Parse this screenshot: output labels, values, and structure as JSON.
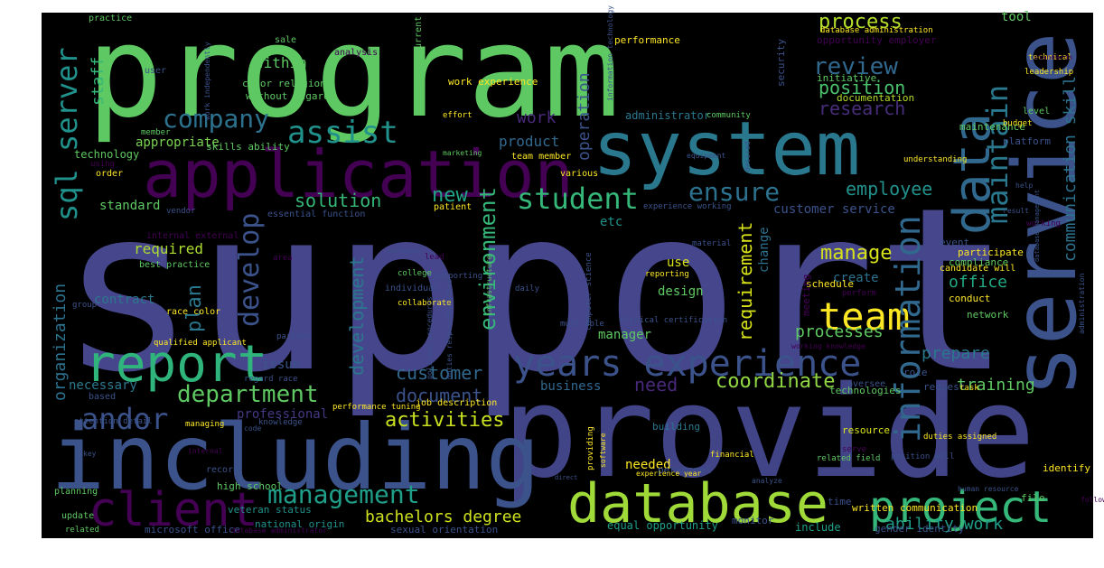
{
  "colors": {
    "background": "#000000",
    "page": "#ffffff"
  },
  "words": [
    {
      "text": "program",
      "color": "#5ec962"
    },
    {
      "text": "support",
      "color": "#46468c"
    },
    {
      "text": "provide",
      "color": "#414487"
    },
    {
      "text": "system",
      "color": "#2a788e"
    },
    {
      "text": "service",
      "color": "#3b528b"
    },
    {
      "text": "including",
      "color": "#3b528b"
    },
    {
      "text": "application",
      "color": "#440154"
    },
    {
      "text": "database",
      "color": "#a0da39"
    },
    {
      "text": "project",
      "color": "#35b779"
    },
    {
      "text": "client",
      "color": "#440154"
    },
    {
      "text": "report",
      "color": "#2fb47c"
    },
    {
      "text": "data",
      "color": "#31688e"
    },
    {
      "text": "years experience",
      "color": "#3b528b"
    },
    {
      "text": "team",
      "color": "#fde725"
    },
    {
      "text": "information",
      "color": "#31688e"
    },
    {
      "text": "sql server",
      "color": "#21918c"
    },
    {
      "text": "maintain",
      "color": "#2a788e"
    },
    {
      "text": "assist",
      "color": "#21918c"
    },
    {
      "text": "company",
      "color": "#2c728e"
    },
    {
      "text": "student",
      "color": "#35b779"
    },
    {
      "text": "ensure",
      "color": "#2c728e"
    },
    {
      "text": "develop",
      "color": "#3b528b"
    },
    {
      "text": "management",
      "color": "#1f9e89"
    },
    {
      "text": "department",
      "color": "#5ec962"
    },
    {
      "text": "andor",
      "color": "#3b528b"
    },
    {
      "text": "review",
      "color": "#31688e"
    },
    {
      "text": "position",
      "color": "#4ac16d"
    },
    {
      "text": "research",
      "color": "#472d7b"
    },
    {
      "text": "process",
      "color": "#b5de2b"
    },
    {
      "text": "activities",
      "color": "#c8e020"
    },
    {
      "text": "manage",
      "color": "#d8e219"
    },
    {
      "text": "employee",
      "color": "#21918c"
    },
    {
      "text": "customer",
      "color": "#31688e"
    },
    {
      "text": "document",
      "color": "#3b528b"
    },
    {
      "text": "coordinate",
      "color": "#90d743"
    },
    {
      "text": "need",
      "color": "#482878"
    },
    {
      "text": "training",
      "color": "#5ec962"
    },
    {
      "text": "environment",
      "color": "#35b779"
    },
    {
      "text": "development",
      "color": "#2a788e"
    },
    {
      "text": "organization",
      "color": "#2c728e"
    },
    {
      "text": "requirement",
      "color": "#d8e219"
    },
    {
      "text": "communication skill",
      "color": "#2c728e"
    },
    {
      "text": "bachelors degree",
      "color": "#cde11d"
    },
    {
      "text": "ability work",
      "color": "#1f9e89"
    },
    {
      "text": "solution",
      "color": "#35b779"
    },
    {
      "text": "new",
      "color": "#21a585"
    },
    {
      "text": "plan",
      "color": "#2a788e"
    },
    {
      "text": "staff",
      "color": "#35b779"
    },
    {
      "text": "work",
      "color": "#482878"
    },
    {
      "text": "operation",
      "color": "#3b528b"
    },
    {
      "text": "processes",
      "color": "#5ec962"
    },
    {
      "text": "prepare",
      "color": "#2a788e"
    },
    {
      "text": "office",
      "color": "#22a884"
    },
    {
      "text": "required",
      "color": "#addc30"
    },
    {
      "text": "product",
      "color": "#31688e"
    },
    {
      "text": "within",
      "color": "#5ec962"
    },
    {
      "text": "appropriate",
      "color": "#7ad151"
    },
    {
      "text": "business",
      "color": "#31688e"
    },
    {
      "text": "issue",
      "color": "#3b528b"
    },
    {
      "text": "necessary",
      "color": "#2a788e"
    },
    {
      "text": "professional",
      "color": "#443983"
    },
    {
      "text": "design",
      "color": "#5ec962"
    },
    {
      "text": "use",
      "color": "#d8e219"
    },
    {
      "text": "needed",
      "color": "#fde725"
    },
    {
      "text": "manager",
      "color": "#5ec962"
    },
    {
      "text": "etc",
      "color": "#21918c"
    },
    {
      "text": "change",
      "color": "#2c728e"
    },
    {
      "text": "equal opportunity",
      "color": "#1f9e89"
    },
    {
      "text": "include",
      "color": "#1fa088"
    },
    {
      "text": "contract",
      "color": "#2a788e"
    },
    {
      "text": "standard",
      "color": "#5ec962"
    },
    {
      "text": "customer service",
      "color": "#3b528b"
    },
    {
      "text": "create",
      "color": "#2c728e"
    },
    {
      "text": "administrator",
      "color": "#2a788e"
    },
    {
      "text": "technology",
      "color": "#5ec962"
    },
    {
      "text": "documentation",
      "color": "#b5de2b"
    },
    {
      "text": "initiative",
      "color": "#5ec962"
    },
    {
      "text": "tool",
      "color": "#5ec962"
    },
    {
      "text": "performance",
      "color": "#fde725"
    },
    {
      "text": "work experience",
      "color": "#fde725"
    },
    {
      "text": "skills ability",
      "color": "#5ec962"
    },
    {
      "text": "without regard",
      "color": "#5ec962"
    },
    {
      "text": "color religion",
      "color": "#5ec962"
    },
    {
      "text": "high school",
      "color": "#5ec962"
    },
    {
      "text": "veteran status",
      "color": "#21918c"
    },
    {
      "text": "microsoft office",
      "color": "#3b528b"
    },
    {
      "text": "national origin",
      "color": "#21918c"
    },
    {
      "text": "sexual orientation",
      "color": "#3b528b"
    },
    {
      "text": "gender identity",
      "color": "#3b528b"
    },
    {
      "text": "written communication",
      "color": "#fde725"
    },
    {
      "text": "monitor",
      "color": "#3b528b"
    },
    {
      "text": "time",
      "color": "#3b528b"
    },
    {
      "text": "file",
      "color": "#5ec962"
    },
    {
      "text": "identify",
      "color": "#fde725"
    },
    {
      "text": "resource",
      "color": "#d8e219"
    },
    {
      "text": "building",
      "color": "#2a788e"
    },
    {
      "text": "personnel",
      "color": "#3b528b"
    },
    {
      "text": "conduct",
      "color": "#fde725"
    },
    {
      "text": "network",
      "color": "#5ec962"
    },
    {
      "text": "event",
      "color": "#3b528b"
    },
    {
      "text": "compliance",
      "color": "#5ec962"
    },
    {
      "text": "participate",
      "color": "#fde725"
    },
    {
      "text": "schedule",
      "color": "#fde725"
    },
    {
      "text": "meeting",
      "color": "#440154"
    },
    {
      "text": "technologies",
      "color": "#5ec962"
    },
    {
      "text": "request",
      "color": "#3b528b"
    },
    {
      "text": "task",
      "color": "#fde725"
    },
    {
      "text": "role",
      "color": "#3b528b"
    },
    {
      "text": "oversee",
      "color": "#3b528b"
    },
    {
      "text": "platform",
      "color": "#3b528b"
    },
    {
      "text": "maintenance",
      "color": "#5ec962"
    },
    {
      "text": "budget",
      "color": "#fde725"
    },
    {
      "text": "level",
      "color": "#5ec962"
    },
    {
      "text": "community",
      "color": "#5ec962"
    },
    {
      "text": "security",
      "color": "#3b528b"
    },
    {
      "text": "opportunity employer",
      "color": "#440154"
    },
    {
      "text": "database administration",
      "color": "#fde725"
    },
    {
      "text": "technical",
      "color": "#fde725"
    },
    {
      "text": "leadership",
      "color": "#fde725"
    },
    {
      "text": "current",
      "color": "#5ec962"
    },
    {
      "text": "sale",
      "color": "#5ec962"
    },
    {
      "text": "user",
      "color": "#3b528b"
    },
    {
      "text": "analysis",
      "color": "#440154"
    },
    {
      "text": "practice",
      "color": "#5ec962"
    },
    {
      "text": "member",
      "color": "#5ec962"
    },
    {
      "text": "order",
      "color": "#fde725"
    },
    {
      "text": "using",
      "color": "#440154"
    },
    {
      "text": "team member",
      "color": "#fde725"
    },
    {
      "text": "various",
      "color": "#fde725"
    },
    {
      "text": "patient",
      "color": "#fde725"
    },
    {
      "text": "experience working",
      "color": "#3b528b"
    },
    {
      "text": "essential function",
      "color": "#3b528b"
    },
    {
      "text": "internal external",
      "color": "#440154"
    },
    {
      "text": "vendor",
      "color": "#3b528b"
    },
    {
      "text": "best practice",
      "color": "#5ec962"
    },
    {
      "text": "area",
      "color": "#440154"
    },
    {
      "text": "individual",
      "color": "#3b528b"
    },
    {
      "text": "collaborate",
      "color": "#fde725"
    },
    {
      "text": "reporting",
      "color": "#fde725"
    },
    {
      "text": "group",
      "color": "#3b528b"
    },
    {
      "text": "race color",
      "color": "#fde725"
    },
    {
      "text": "qualified applicant",
      "color": "#fde725"
    },
    {
      "text": "partner",
      "color": "#3b528b"
    },
    {
      "text": "regard race",
      "color": "#3b528b"
    },
    {
      "text": "based",
      "color": "#3b528b"
    },
    {
      "text": "attention detail",
      "color": "#3b528b"
    },
    {
      "text": "managing",
      "color": "#fde725"
    },
    {
      "text": "knowledge",
      "color": "#3b528b"
    },
    {
      "text": "performance tuning",
      "color": "#fde725"
    },
    {
      "text": "job description",
      "color": "#fde725"
    },
    {
      "text": "code",
      "color": "#3b528b"
    },
    {
      "text": "internal",
      "color": "#440154"
    },
    {
      "text": "record",
      "color": "#3b528b"
    },
    {
      "text": "key",
      "color": "#3b528b"
    },
    {
      "text": "planning",
      "color": "#5ec962"
    },
    {
      "text": "update",
      "color": "#5ec962"
    },
    {
      "text": "related",
      "color": "#5ec962"
    },
    {
      "text": "database administrator",
      "color": "#440154"
    },
    {
      "text": "must able",
      "color": "#3b528b"
    },
    {
      "text": "clinical certification",
      "color": "#3b528b"
    },
    {
      "text": "working knowledge",
      "color": "#440154"
    },
    {
      "text": "candidate will",
      "color": "#fde725"
    },
    {
      "text": "related field",
      "color": "#5ec962"
    },
    {
      "text": "position will",
      "color": "#3b528b"
    },
    {
      "text": "serve",
      "color": "#440154"
    },
    {
      "text": "experience year",
      "color": "#fde725"
    },
    {
      "text": "financial",
      "color": "#fde725"
    },
    {
      "text": "human resource",
      "color": "#3b528b"
    },
    {
      "text": "analyze",
      "color": "#3b528b"
    },
    {
      "text": "direct",
      "color": "#3b528b"
    },
    {
      "text": "perform",
      "color": "#440154"
    },
    {
      "text": "material",
      "color": "#3b528b"
    },
    {
      "text": "implement",
      "color": "#3b528b"
    },
    {
      "text": "lead",
      "color": "#440154"
    },
    {
      "text": "supporting",
      "color": "#3b528b"
    },
    {
      "text": "college",
      "color": "#5ec962"
    },
    {
      "text": "daily",
      "color": "#3b528b"
    },
    {
      "text": "result",
      "color": "#3b528b"
    },
    {
      "text": "help",
      "color": "#3b528b"
    },
    {
      "text": "working",
      "color": "#440154"
    },
    {
      "text": "equipment",
      "color": "#3b528b"
    },
    {
      "text": "desired",
      "color": "#3b528b"
    },
    {
      "text": "marketing",
      "color": "#5ec962"
    },
    {
      "text": "understanding",
      "color": "#fde725"
    },
    {
      "text": "effort",
      "color": "#fde725"
    },
    {
      "text": "work independently",
      "color": "#3b528b"
    },
    {
      "text": "information technology",
      "color": "#3b528b"
    },
    {
      "text": "computer science",
      "color": "#3b528b"
    },
    {
      "text": "infrastructure",
      "color": "#5ec962"
    },
    {
      "text": "duties responsibilities",
      "color": "#3b528b"
    },
    {
      "text": "policies procedures",
      "color": "#3b528b"
    },
    {
      "text": "duties assigned",
      "color": "#fde725"
    },
    {
      "text": "software",
      "color": "#fde725"
    },
    {
      "text": "providing",
      "color": "#fde725"
    },
    {
      "text": "administration",
      "color": "#3b528b"
    },
    {
      "text": "database management",
      "color": "#3b528b"
    },
    {
      "text": "follow",
      "color": "#440154"
    },
    {
      "text": "standards",
      "color": "#440154"
    }
  ]
}
